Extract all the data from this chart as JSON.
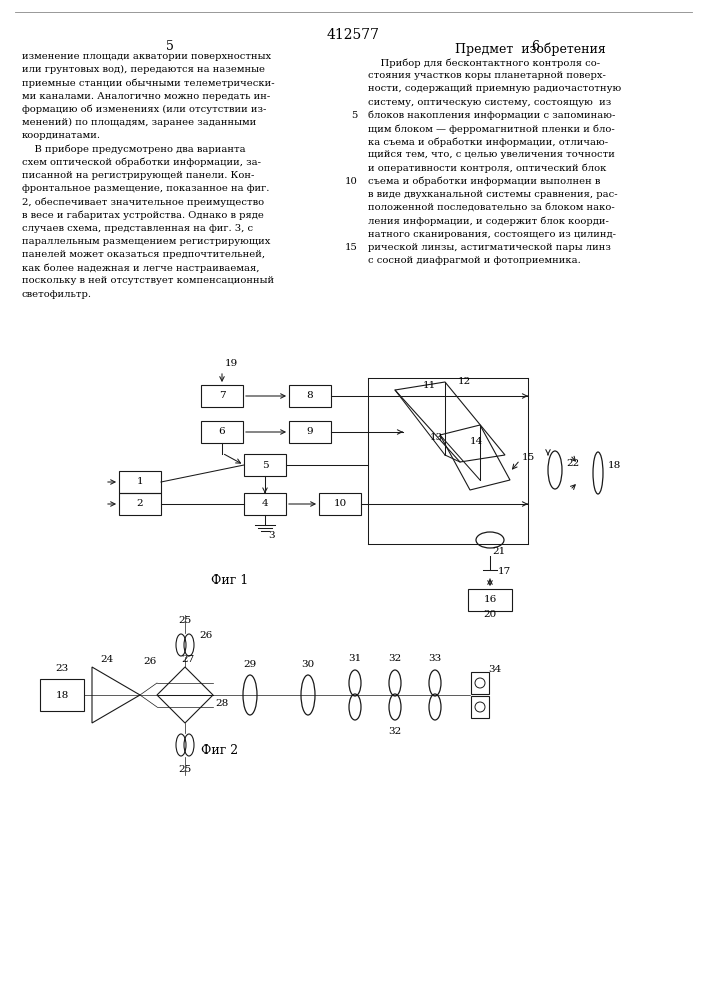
{
  "page_number_center": "412577",
  "page_num_left": "5",
  "page_num_right": "6",
  "title_right": "Предмет  изобретения",
  "left_text": [
    "изменение площади акватории поверхностных",
    "или грунтовых вод), передаются на наземные",
    "приемные станции обычными телеметрически-",
    "ми каналами. Аналогично можно передать ин-",
    "формацию об изменениях (или отсутствии из-",
    "менений) по площадям, заранее заданными",
    "координатами.",
    "    В приборе предусмотрено два варианта",
    "схем оптической обработки информации, за-",
    "писанной на регистрирующей панели. Кон-",
    "фронтальное размещение, показанное на фиг.",
    "2, обеспечивает значительное преимущество",
    "в весе и габаритах устройства. Однако в ряде",
    "случаев схема, представленная на фиг. 3, с",
    "параллельным размещением регистрирующих",
    "панелей может оказаться предпочтительней,",
    "как более надежная и легче настраиваемая,",
    "поскольку в ней отсутствует компенсационный",
    "светофильтр."
  ],
  "right_text_lines": [
    "    Прибор для бесконтактного контроля со-",
    "стояния участков коры планетарной поверх-",
    "ности, содержащий приемную радиочастотную",
    "систему, оптическую систему, состоящую  из",
    "блоков накопления информации с запоминаю-",
    "щим блоком — ферромагнитной пленки и бло-",
    "ка съема и обработки информации, отличаю-",
    "щийся тем, что, с целью увеличения точности",
    "и оперативности контроля, оптический блок",
    "съема и обработки информации выполнен в",
    "в виде двухканальной системы сравнения, рас-",
    "положенной последовательно за блоком нако-",
    "ления информации, и содержит блок коорди-",
    "натного сканирования, состоящего из цилинд-",
    "рической линзы, астигматической пары линз",
    "с сосной диафрагмой и фотоприемника."
  ],
  "line_num_map": {
    "4": "5",
    "9": "10",
    "14": "15",
    "18": "20"
  },
  "fig1_label": "Фиг 1",
  "fig2_label": "Фиг 2",
  "bg": "#ffffff",
  "fg": "#000000"
}
